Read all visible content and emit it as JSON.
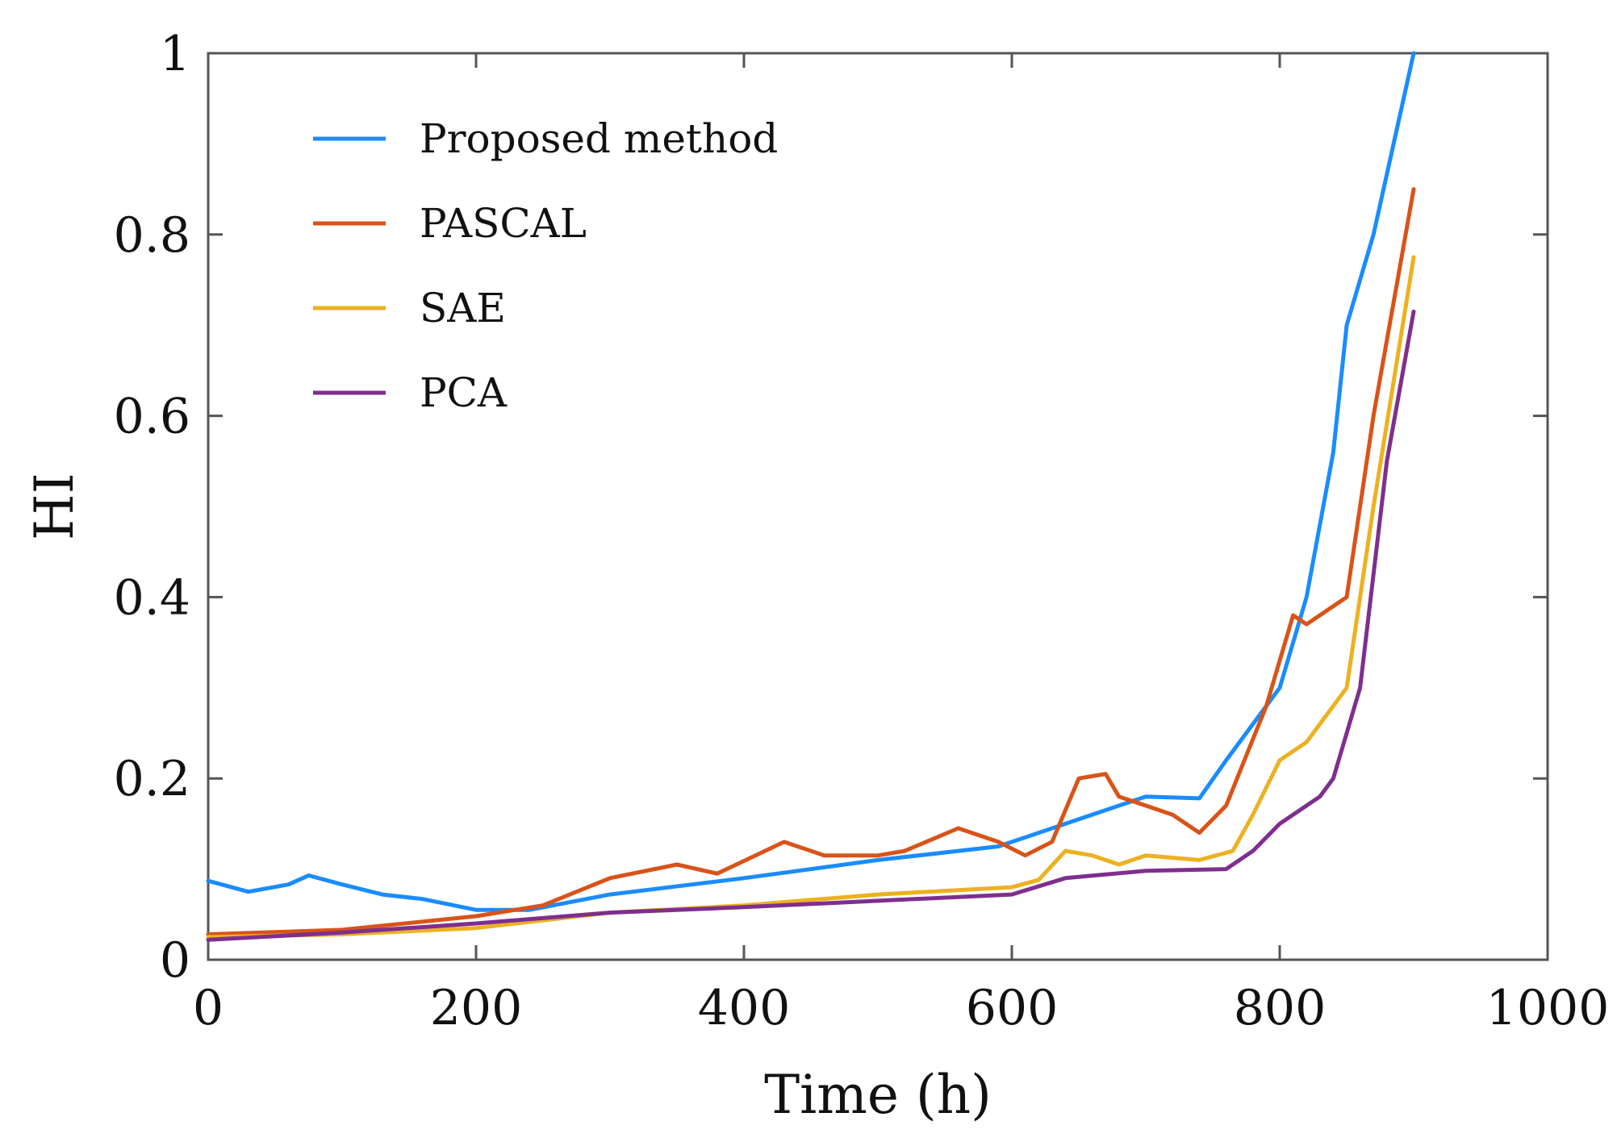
{
  "chart_data": {
    "type": "line",
    "title": "",
    "xlabel": "Time (h)",
    "ylabel": "HI",
    "xlim": [
      0,
      1000
    ],
    "ylim": [
      0,
      1
    ],
    "xticks": [
      0,
      200,
      400,
      600,
      800,
      1000
    ],
    "xtick_labels": [
      "0",
      "200",
      "400",
      "600",
      "800",
      "1000"
    ],
    "yticks": [
      0,
      0.2,
      0.4,
      0.6,
      0.8,
      1
    ],
    "ytick_labels": [
      "0",
      "0.2",
      "0.4",
      "0.6",
      "0.8",
      "1"
    ],
    "grid": false,
    "legend_position": "top-left",
    "series": [
      {
        "name": "Proposed method",
        "color": "#1a8cff",
        "x": [
          0,
          30,
          60,
          75,
          100,
          130,
          160,
          200,
          240,
          300,
          400,
          500,
          590,
          650,
          700,
          740,
          760,
          800,
          820,
          840,
          850,
          870,
          900
        ],
        "y": [
          0.087,
          0.075,
          0.083,
          0.093,
          0.083,
          0.072,
          0.067,
          0.055,
          0.055,
          0.072,
          0.09,
          0.11,
          0.125,
          0.155,
          0.18,
          0.178,
          0.22,
          0.3,
          0.4,
          0.56,
          0.7,
          0.8,
          1.0
        ]
      },
      {
        "name": "PASCAL",
        "color": "#d95319",
        "x": [
          0,
          100,
          200,
          250,
          300,
          350,
          380,
          430,
          460,
          500,
          520,
          560,
          590,
          610,
          630,
          650,
          670,
          680,
          700,
          720,
          740,
          760,
          790,
          810,
          820,
          850,
          870,
          900
        ],
        "y": [
          0.028,
          0.033,
          0.048,
          0.06,
          0.09,
          0.105,
          0.095,
          0.13,
          0.115,
          0.115,
          0.12,
          0.145,
          0.13,
          0.115,
          0.13,
          0.2,
          0.205,
          0.18,
          0.17,
          0.16,
          0.14,
          0.17,
          0.28,
          0.38,
          0.37,
          0.4,
          0.6,
          0.85
        ]
      },
      {
        "name": "SAE",
        "color": "#edb120",
        "x": [
          0,
          100,
          200,
          300,
          400,
          500,
          600,
          620,
          640,
          660,
          680,
          700,
          740,
          765,
          780,
          800,
          820,
          850,
          870,
          900
        ],
        "y": [
          0.025,
          0.028,
          0.035,
          0.052,
          0.06,
          0.072,
          0.08,
          0.088,
          0.12,
          0.115,
          0.105,
          0.115,
          0.11,
          0.12,
          0.16,
          0.22,
          0.24,
          0.3,
          0.5,
          0.775
        ]
      },
      {
        "name": "PCA",
        "color": "#7e2f8e",
        "x": [
          0,
          100,
          200,
          300,
          400,
          500,
          600,
          640,
          700,
          760,
          780,
          800,
          830,
          840,
          860,
          880,
          900
        ],
        "y": [
          0.022,
          0.03,
          0.04,
          0.052,
          0.058,
          0.065,
          0.072,
          0.09,
          0.098,
          0.1,
          0.12,
          0.15,
          0.18,
          0.2,
          0.3,
          0.55,
          0.715
        ]
      }
    ]
  }
}
